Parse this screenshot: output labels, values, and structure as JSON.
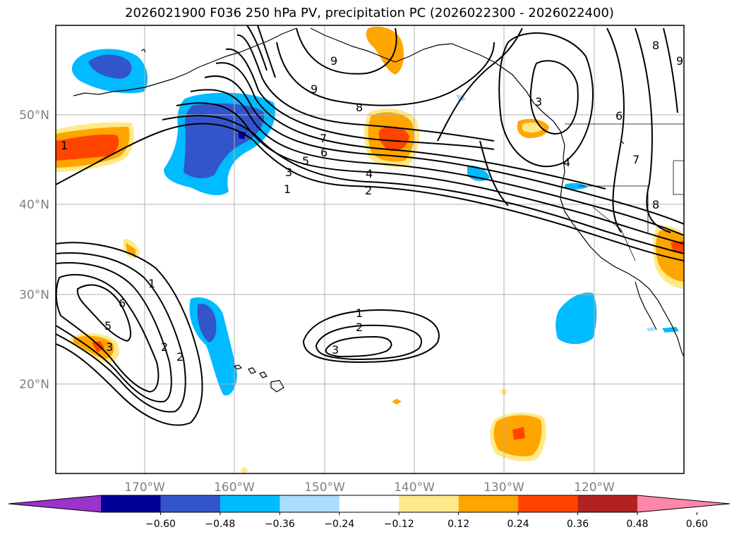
{
  "title": "2026021900 F036 250 hPa PV, precipitation PC (2026022300 - 2026022400)",
  "lat_labels": [
    "50°N",
    "40°N",
    "30°N",
    "20°N"
  ],
  "lon_labels": [
    "170°W",
    "160°W",
    "150°W",
    "140°W",
    "130°W",
    "120°W"
  ],
  "colorbar": {
    "ticks": [
      "−0.60",
      "−0.48",
      "−0.36",
      "−0.24",
      "−0.12",
      "0.12",
      "0.24",
      "0.36",
      "0.48",
      "0.60"
    ],
    "colors": [
      "#9933cc",
      "#000099",
      "#3355cc",
      "#00bbff",
      "#aaddff",
      "#ffffff",
      "#ffe98a",
      "#ffa500",
      "#ff4400",
      "#b22222",
      "#ff88aa"
    ]
  },
  "contour_labels": {
    "north_jet": [
      "1",
      "2",
      "3",
      "4",
      "5",
      "6",
      "7",
      "8",
      "9",
      "9"
    ],
    "west_trough": [
      "1",
      "2",
      "2",
      "3",
      "5",
      "6"
    ],
    "mid_pacific_low": [
      "1",
      "2",
      "3"
    ],
    "ne_pacific": [
      "3",
      "4",
      "6",
      "7",
      "8",
      "8",
      "9",
      "1"
    ]
  }
}
